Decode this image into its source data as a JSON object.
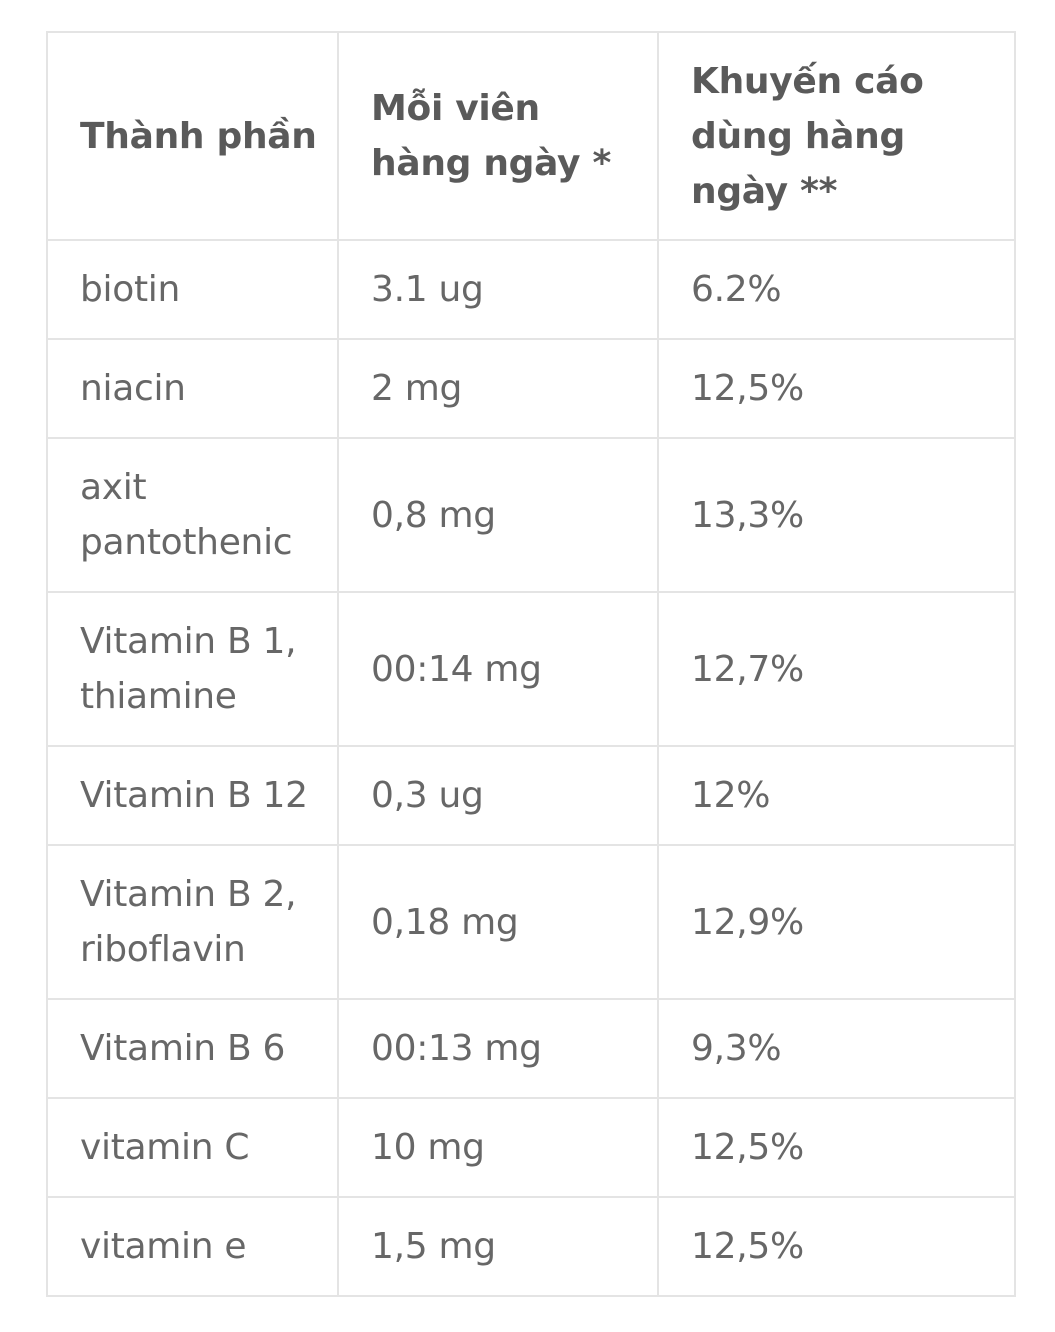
{
  "table": {
    "headers": [
      "Thành phần",
      "Mỗi viên hàng ngày *",
      "Khuyến cáo dùng hàng ngày **"
    ],
    "rows": [
      {
        "ingredient": "biotin",
        "per_tablet": "3.1 ug",
        "recommended": "6.2%"
      },
      {
        "ingredient": "niacin",
        "per_tablet": "2 mg",
        "recommended": "12,5%"
      },
      {
        "ingredient": "axit pantothenic",
        "per_tablet": "0,8 mg",
        "recommended": "13,3%"
      },
      {
        "ingredient": "Vitamin B 1, thiamine",
        "per_tablet": "00:14 mg",
        "recommended": "12,7%"
      },
      {
        "ingredient": "Vitamin B 12",
        "per_tablet": "0,3 ug",
        "recommended": "12%"
      },
      {
        "ingredient": "Vitamin B 2, riboflavin",
        "per_tablet": "0,18 mg",
        "recommended": "12,9%"
      },
      {
        "ingredient": "Vitamin B 6",
        "per_tablet": "00:13 mg",
        "recommended": "9,3%"
      },
      {
        "ingredient": "vitamin C",
        "per_tablet": "10 mg",
        "recommended": "12,5%"
      },
      {
        "ingredient": "vitamin e",
        "per_tablet": "1,5 mg",
        "recommended": "12,5%"
      }
    ]
  },
  "colors": {
    "text": "#5a5a5a",
    "border": "#e4e4e4",
    "background": "#ffffff"
  }
}
